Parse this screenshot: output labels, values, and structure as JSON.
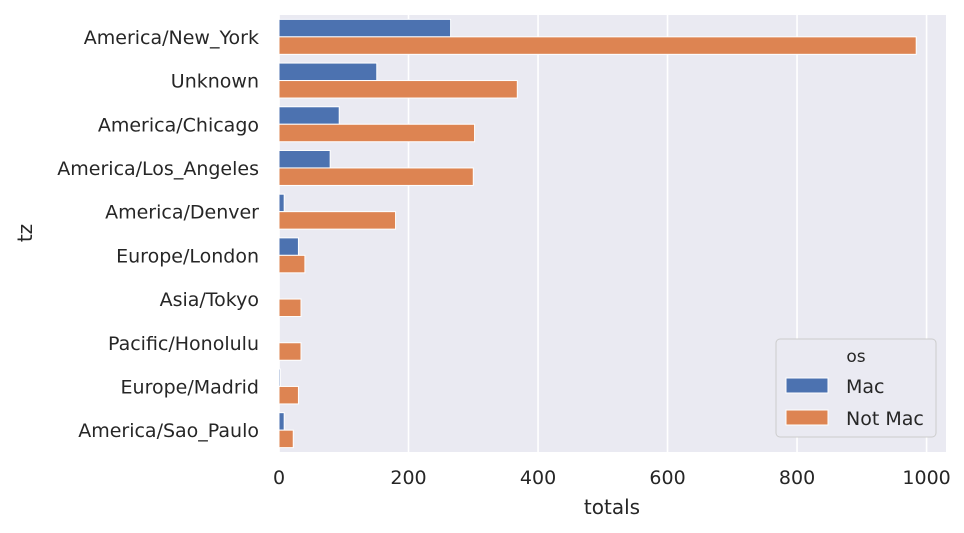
{
  "chart_data": {
    "type": "bar",
    "orientation": "horizontal",
    "categories": [
      "America/New_York",
      "Unknown",
      "America/Chicago",
      "America/Los_Angeles",
      "America/Denver",
      "Europe/London",
      "Asia/Tokyo",
      "Pacific/Honolulu",
      "Europe/Madrid",
      "America/Sao_Paulo"
    ],
    "series": [
      {
        "name": "Mac",
        "color": "#4c72b0",
        "values": [
          265,
          151,
          93,
          79,
          8,
          30,
          0,
          0,
          2,
          8
        ]
      },
      {
        "name": "Not Mac",
        "color": "#dd8452",
        "values": [
          984,
          368,
          302,
          300,
          180,
          40,
          34,
          34,
          30,
          22
        ]
      }
    ],
    "xlabel": "totals",
    "ylabel": "tz",
    "xlim": [
      0,
      1030
    ],
    "xticks": [
      0,
      200,
      400,
      600,
      800,
      1000
    ],
    "grid": true,
    "background": "#eaeaf2",
    "legend": {
      "title": "os",
      "position": "lower-right"
    }
  }
}
